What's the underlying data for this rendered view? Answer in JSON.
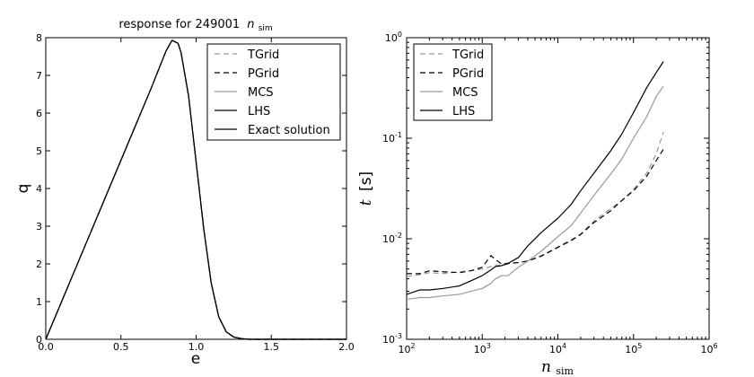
{
  "chart_data": [
    {
      "type": "line",
      "title": "response for 249001 n_sim",
      "title_prefix": "response for 249001",
      "title_math_main": "n",
      "title_math_sub": "sim",
      "xlabel": "e",
      "ylabel": "q",
      "xlim": [
        0.0,
        2.0
      ],
      "ylim": [
        0,
        8
      ],
      "xscale": "linear",
      "yscale": "linear",
      "x_ticks": [
        "0.0",
        "0.5",
        "1.0",
        "1.5",
        "2.0"
      ],
      "y_ticks": [
        "0",
        "1",
        "2",
        "3",
        "4",
        "5",
        "6",
        "7",
        "8"
      ],
      "grid": false,
      "legend_position": "top-right",
      "colors": {
        "TGrid": "#999999",
        "PGrid": "#000000",
        "MCS": "#999999",
        "LHS": "#000000",
        "Exact solution": "#000000"
      },
      "legend": [
        "TGrid",
        "PGrid",
        "MCS",
        "LHS",
        "Exact solution"
      ],
      "curve_note": "All five series overlap: linear rise to peak near e=0.84, q=7.93, then bell-shaped decay to 0 by e≈1.35",
      "x": [
        0.0,
        0.1,
        0.2,
        0.3,
        0.4,
        0.5,
        0.6,
        0.7,
        0.75,
        0.8,
        0.84,
        0.88,
        0.9,
        0.95,
        1.0,
        1.05,
        1.1,
        1.15,
        1.2,
        1.25,
        1.3,
        1.35,
        1.4,
        1.5,
        2.0
      ],
      "series": [
        {
          "name": "TGrid",
          "style": "dashed",
          "color": "#999999",
          "values": [
            0.0,
            0.95,
            1.9,
            2.85,
            3.8,
            4.75,
            5.7,
            6.65,
            7.15,
            7.65,
            7.93,
            7.85,
            7.6,
            6.45,
            4.7,
            2.95,
            1.5,
            0.6,
            0.2,
            0.06,
            0.02,
            0.0,
            0.0,
            0.0,
            0.0
          ]
        },
        {
          "name": "PGrid",
          "style": "dashed",
          "color": "#000000",
          "values": [
            0.0,
            0.95,
            1.9,
            2.85,
            3.8,
            4.75,
            5.7,
            6.65,
            7.15,
            7.65,
            7.93,
            7.85,
            7.6,
            6.45,
            4.7,
            2.95,
            1.5,
            0.6,
            0.2,
            0.06,
            0.02,
            0.0,
            0.0,
            0.0,
            0.0
          ]
        },
        {
          "name": "MCS",
          "style": "solid",
          "color": "#999999",
          "values": [
            0.0,
            0.95,
            1.9,
            2.85,
            3.8,
            4.75,
            5.7,
            6.65,
            7.15,
            7.65,
            7.93,
            7.85,
            7.6,
            6.45,
            4.7,
            2.95,
            1.5,
            0.6,
            0.2,
            0.06,
            0.02,
            0.0,
            0.0,
            0.0,
            0.0
          ]
        },
        {
          "name": "LHS",
          "style": "solid",
          "color": "#000000",
          "values": [
            0.0,
            0.95,
            1.9,
            2.85,
            3.8,
            4.75,
            5.7,
            6.65,
            7.15,
            7.65,
            7.93,
            7.85,
            7.6,
            6.45,
            4.7,
            2.95,
            1.5,
            0.6,
            0.2,
            0.06,
            0.02,
            0.0,
            0.0,
            0.0,
            0.0
          ]
        },
        {
          "name": "Exact solution",
          "style": "solid",
          "color": "#000000",
          "values": [
            0.0,
            0.95,
            1.9,
            2.85,
            3.8,
            4.75,
            5.7,
            6.65,
            7.15,
            7.65,
            7.93,
            7.85,
            7.6,
            6.45,
            4.7,
            2.95,
            1.5,
            0.6,
            0.2,
            0.06,
            0.02,
            0.0,
            0.0,
            0.0,
            0.0
          ]
        }
      ]
    },
    {
      "type": "line",
      "title": "",
      "xlabel": "n_sim",
      "xlabel_math_main": "n",
      "xlabel_math_sub": "sim",
      "ylabel": "t [s]",
      "ylabel_math": "t",
      "ylabel_unit": "[s]",
      "xscale": "log",
      "yscale": "log",
      "xlim": [
        100,
        1000000
      ],
      "ylim": [
        0.001,
        1
      ],
      "x_ticks": [
        {
          "base": "10",
          "exp": "2"
        },
        {
          "base": "10",
          "exp": "3"
        },
        {
          "base": "10",
          "exp": "4"
        },
        {
          "base": "10",
          "exp": "5"
        },
        {
          "base": "10",
          "exp": "6"
        }
      ],
      "y_ticks": [
        {
          "base": "10",
          "exp": "-3"
        },
        {
          "base": "10",
          "exp": "-2"
        },
        {
          "base": "10",
          "exp": "-1"
        },
        {
          "base": "10",
          "exp": "0"
        }
      ],
      "grid": false,
      "legend_position": "top-left",
      "colors": {
        "TGrid": "#999999",
        "PGrid": "#000000",
        "MCS": "#999999",
        "LHS": "#000000"
      },
      "legend": [
        "TGrid",
        "PGrid",
        "MCS",
        "LHS"
      ],
      "x": [
        100,
        150,
        200,
        300,
        500,
        700,
        1000,
        1300,
        1500,
        1800,
        2200,
        3000,
        4000,
        6000,
        10000,
        15000,
        20000,
        30000,
        50000,
        70000,
        100000,
        150000,
        200000,
        249001
      ],
      "series": [
        {
          "name": "TGrid",
          "style": "dashed",
          "color": "#999999",
          "values": [
            0.0042,
            0.0044,
            0.0046,
            0.0045,
            0.0047,
            0.0048,
            0.005,
            0.0053,
            0.0055,
            0.0054,
            0.0056,
            0.0058,
            0.006,
            0.0068,
            0.0083,
            0.0098,
            0.0112,
            0.015,
            0.02,
            0.024,
            0.031,
            0.045,
            0.07,
            0.115
          ]
        },
        {
          "name": "PGrid",
          "style": "dashed",
          "color": "#000000",
          "values": [
            0.0045,
            0.0045,
            0.0048,
            0.0047,
            0.0046,
            0.0048,
            0.0052,
            0.0068,
            0.0062,
            0.0056,
            0.0057,
            0.0058,
            0.006,
            0.0067,
            0.0082,
            0.0096,
            0.011,
            0.0145,
            0.019,
            0.024,
            0.03,
            0.042,
            0.06,
            0.078
          ]
        },
        {
          "name": "MCS",
          "style": "solid",
          "color": "#999999",
          "values": [
            0.0025,
            0.0026,
            0.0026,
            0.0027,
            0.0028,
            0.003,
            0.0032,
            0.0036,
            0.004,
            0.0043,
            0.0043,
            0.0052,
            0.006,
            0.0075,
            0.0105,
            0.0135,
            0.018,
            0.027,
            0.044,
            0.062,
            0.1,
            0.165,
            0.26,
            0.33
          ]
        },
        {
          "name": "LHS",
          "style": "solid",
          "color": "#000000",
          "values": [
            0.0028,
            0.0031,
            0.0031,
            0.0032,
            0.0034,
            0.0038,
            0.0043,
            0.0049,
            0.0053,
            0.0054,
            0.0057,
            0.0065,
            0.0085,
            0.0115,
            0.016,
            0.022,
            0.03,
            0.045,
            0.075,
            0.11,
            0.18,
            0.32,
            0.45,
            0.58
          ]
        }
      ]
    }
  ]
}
